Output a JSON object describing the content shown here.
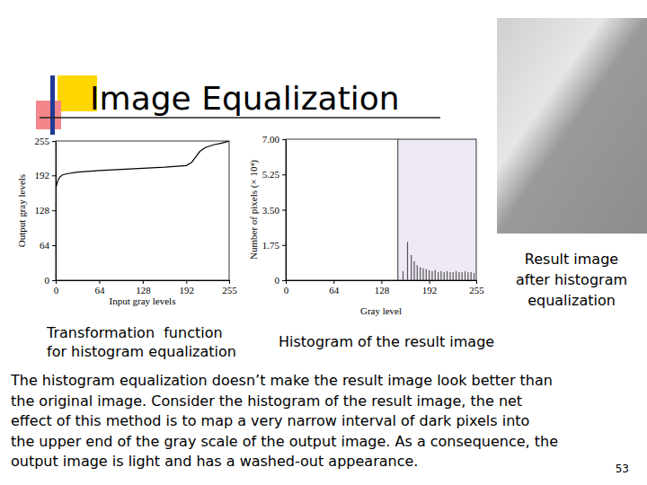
{
  "slide": {
    "title": "Image Equalization",
    "image_caption": [
      "Result image",
      "after histogram",
      "equalization"
    ],
    "caption_left": [
      "Transformation  function",
      "for histogram equalization"
    ],
    "caption_right": "Histogram of the result image",
    "paragraph": [
      "The histogram equalization doesn’t make the result image look better than",
      "the original image. Consider the histogram of the result image, the net",
      "effect of this method is to map a very narrow interval of dark pixels into",
      "the upper end of the gray scale of the output image. As a consequence, the",
      "output image is light and has a washed-out appearance."
    ],
    "page": 53
  },
  "chart_data": [
    {
      "type": "line",
      "x_label": "Input gray levels",
      "y_label": "Output gray levels",
      "x": [
        0,
        3,
        6,
        10,
        16,
        32,
        64,
        96,
        128,
        160,
        192,
        200,
        206,
        212,
        220,
        232,
        244,
        255
      ],
      "values": [
        168,
        182,
        189,
        193,
        195,
        198,
        201,
        203,
        205,
        207,
        210,
        216,
        226,
        236,
        243,
        248,
        251,
        255
      ],
      "color": "#000000",
      "xlim": [
        0,
        255
      ],
      "ylim": [
        0,
        255
      ],
      "xticks": [
        0,
        64,
        128,
        192,
        255
      ],
      "yticks": [
        0,
        64,
        128,
        192,
        255
      ]
    },
    {
      "type": "bar",
      "x_label": "Gray level",
      "y_label": "Number of pixels (× 10⁴)",
      "x": [
        150,
        157,
        163,
        168,
        172,
        176,
        180,
        184,
        188,
        192,
        196,
        200,
        204,
        208,
        212,
        216,
        220,
        224,
        228,
        232,
        236,
        240,
        244,
        248,
        252
      ],
      "values": [
        7.0,
        0.45,
        1.9,
        1.25,
        0.95,
        0.75,
        0.65,
        0.6,
        0.55,
        0.5,
        0.45,
        0.5,
        0.4,
        0.45,
        0.4,
        0.45,
        0.4,
        0.4,
        0.45,
        0.4,
        0.4,
        0.45,
        0.4,
        0.4,
        0.35
      ],
      "color": "#555555",
      "xlim": [
        0,
        255
      ],
      "ylim": [
        0,
        7
      ],
      "xticks": [
        0,
        64,
        128,
        192,
        255
      ],
      "yticks": [
        0,
        {
          "value": 1.75,
          "label": "1.75"
        },
        {
          "value": 3.5,
          "label": "3.50"
        },
        {
          "value": 5.25,
          "label": "5.25"
        },
        {
          "value": 7,
          "label": "7.00"
        }
      ]
    }
  ]
}
